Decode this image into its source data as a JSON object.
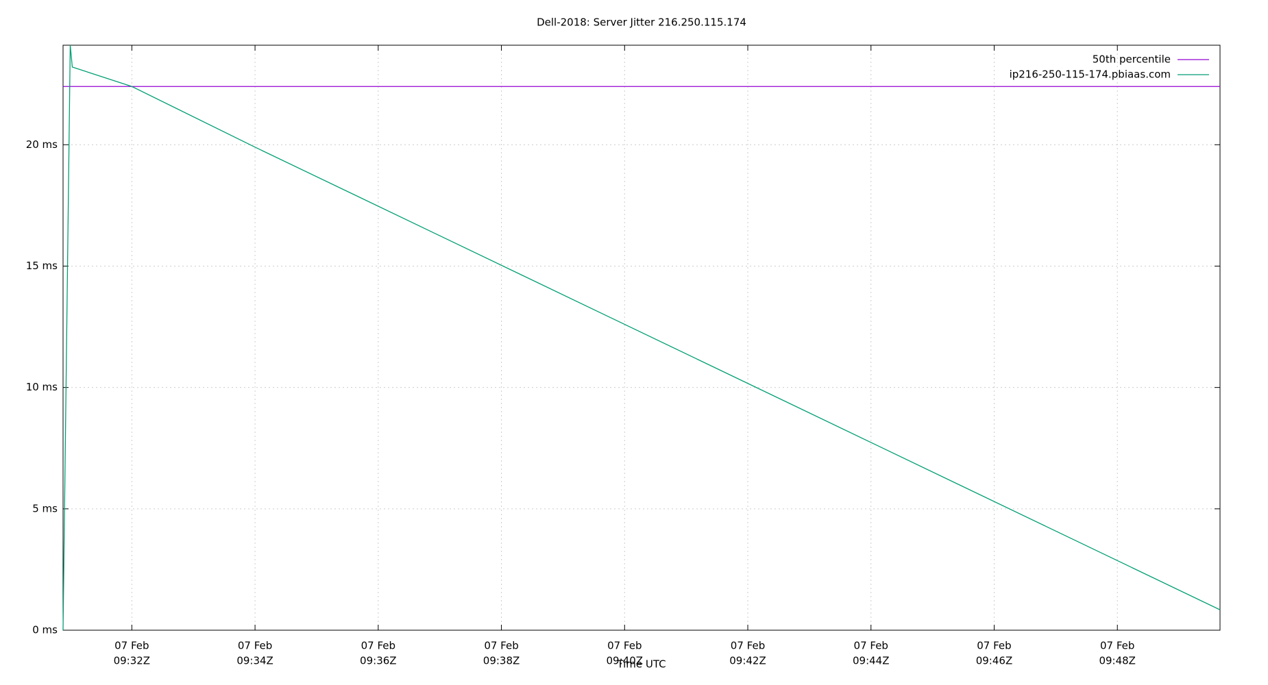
{
  "chart_data": {
    "type": "line",
    "title": "Dell-2018: Server Jitter 216.250.115.174",
    "x_label": "Time UTC",
    "x": [
      "09:30:53",
      "09:31:00",
      "09:31:02",
      "09:32:00",
      "09:34:00",
      "09:49:40"
    ],
    "xlim": [
      "09:30:53",
      "09:49:40"
    ],
    "xticks": [
      {
        "value": "09:32:00",
        "label": [
          "07 Feb",
          "09:32Z"
        ]
      },
      {
        "value": "09:34:00",
        "label": [
          "07 Feb",
          "09:34Z"
        ]
      },
      {
        "value": "09:36:00",
        "label": [
          "07 Feb",
          "09:36Z"
        ]
      },
      {
        "value": "09:38:00",
        "label": [
          "07 Feb",
          "09:38Z"
        ]
      },
      {
        "value": "09:40:00",
        "label": [
          "07 Feb",
          "09:40Z"
        ]
      },
      {
        "value": "09:42:00",
        "label": [
          "07 Feb",
          "09:42Z"
        ]
      },
      {
        "value": "09:44:00",
        "label": [
          "07 Feb",
          "09:44Z"
        ]
      },
      {
        "value": "09:46:00",
        "label": [
          "07 Feb",
          "09:46Z"
        ]
      },
      {
        "value": "09:48:00",
        "label": [
          "07 Feb",
          "09:48Z"
        ]
      }
    ],
    "ylim": [
      0,
      24.1
    ],
    "yticks": [
      {
        "value": 0,
        "label": "0 ms"
      },
      {
        "value": 5,
        "label": "5 ms"
      },
      {
        "value": 10,
        "label": "10 ms"
      },
      {
        "value": 15,
        "label": "15 ms"
      },
      {
        "value": 20,
        "label": "20 ms"
      }
    ],
    "grid": true,
    "legend": "top-right",
    "reference_lines": [
      {
        "name": "50th percentile",
        "color": "#9400d3",
        "value": 22.4
      }
    ],
    "series": [
      {
        "name": "ip216-250-115-174.pbiaas.com",
        "color": "#009e73",
        "values": [
          0,
          24.1,
          23.2,
          22.4,
          19.9,
          0.84
        ]
      }
    ]
  }
}
